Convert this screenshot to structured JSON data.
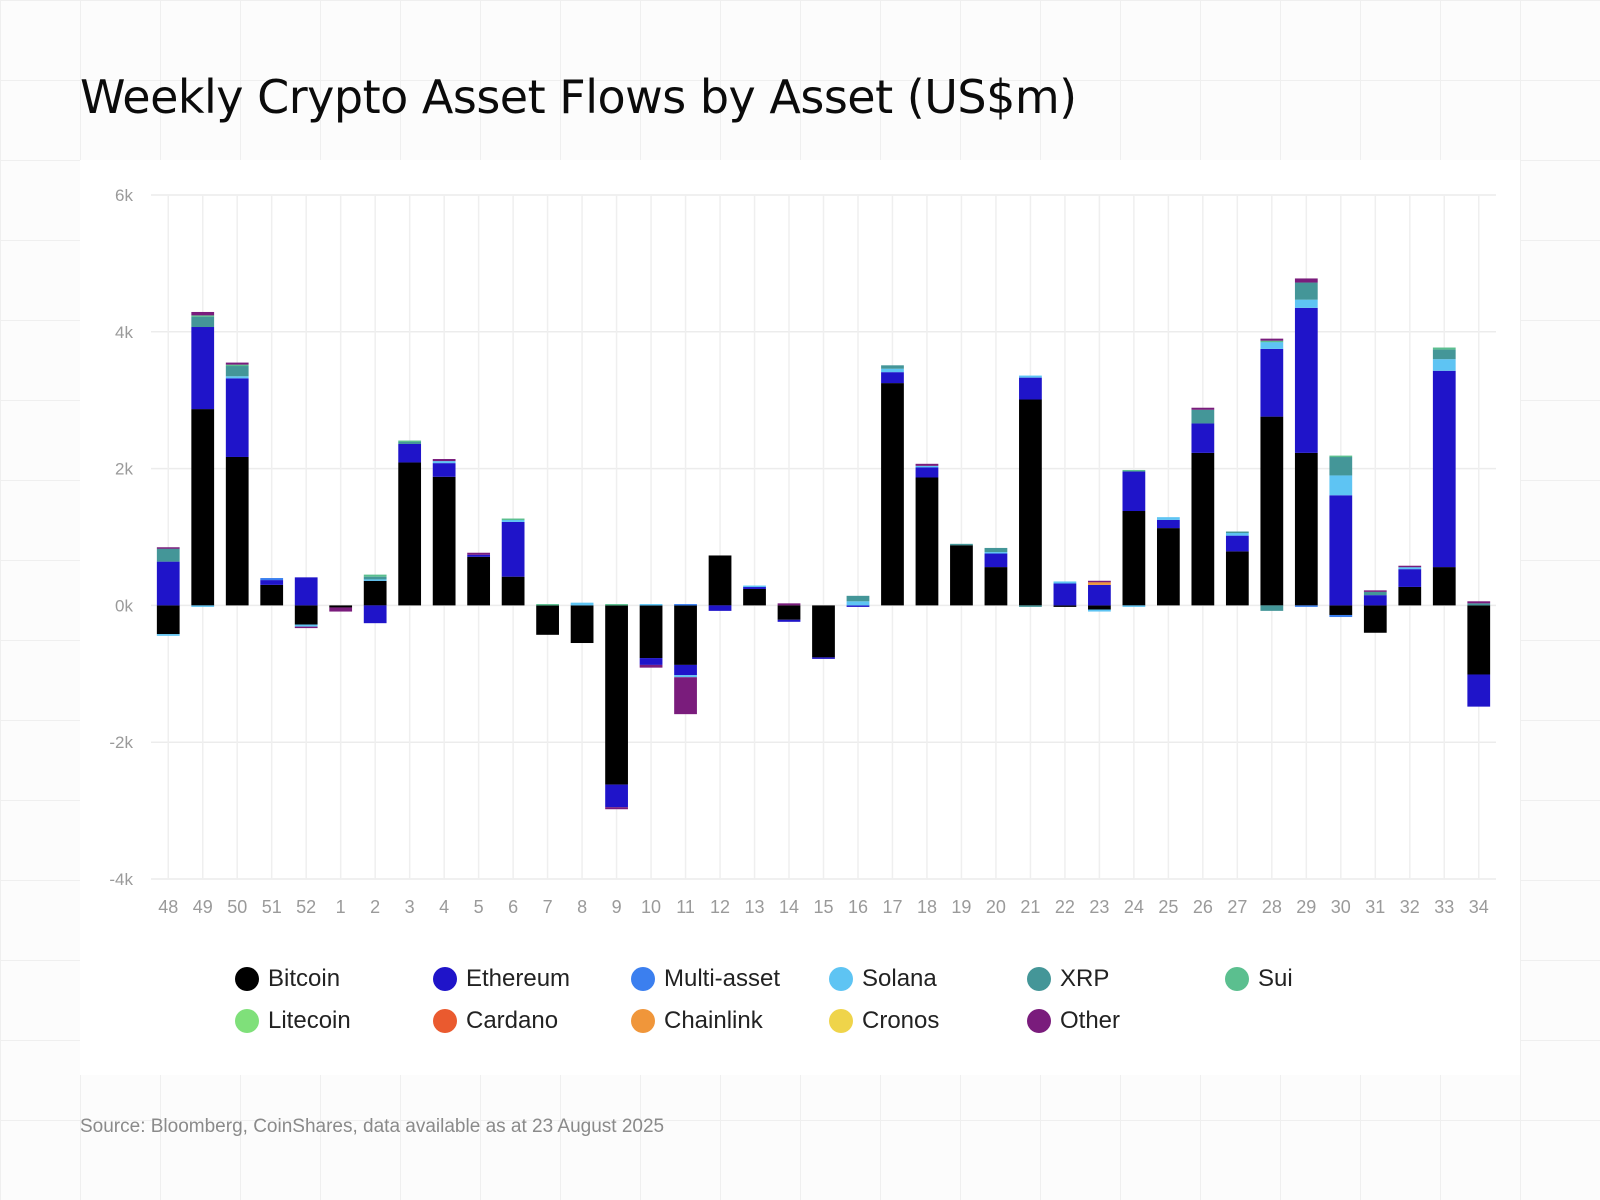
{
  "title": "Weekly Crypto Asset Flows by Asset (US$m)",
  "source": "Source: Bloomberg, CoinShares, data available as at 23 August 2025",
  "chart_data": {
    "type": "bar",
    "stacked": true,
    "title": "Weekly Crypto Asset Flows by Asset (US$m)",
    "xlabel": "",
    "ylabel": "",
    "ylim": [
      -4000,
      6000
    ],
    "yticks": [
      -4000,
      -2000,
      0,
      2000,
      4000,
      6000
    ],
    "ytick_labels": [
      "-4k",
      "-2k",
      "0k",
      "2k",
      "4k",
      "6k"
    ],
    "grid": true,
    "legend_position": "bottom",
    "categories": [
      "48",
      "49",
      "50",
      "51",
      "52",
      "1",
      "2",
      "3",
      "4",
      "5",
      "6",
      "7",
      "8",
      "9",
      "10",
      "11",
      "12",
      "13",
      "14",
      "15",
      "16",
      "17",
      "18",
      "19",
      "20",
      "21",
      "22",
      "23",
      "24",
      "25",
      "26",
      "27",
      "28",
      "29",
      "30",
      "31",
      "32",
      "33",
      "34"
    ],
    "series": [
      {
        "name": "Bitcoin",
        "color": "#000000",
        "values": [
          -420,
          2870,
          2170,
          300,
          -280,
          -30,
          360,
          2090,
          1880,
          710,
          420,
          -430,
          -550,
          -2620,
          -770,
          -870,
          730,
          240,
          -210,
          -760,
          0,
          3250,
          1870,
          880,
          560,
          3010,
          -20,
          -60,
          1380,
          1130,
          2230,
          790,
          2760,
          2230,
          -140,
          -400,
          270,
          560,
          -1010
        ]
      },
      {
        "name": "Ethereum",
        "color": "#1f14c9",
        "values": [
          640,
          1200,
          1150,
          70,
          410,
          0,
          -260,
          270,
          200,
          30,
          800,
          0,
          0,
          -330,
          -100,
          -150,
          -80,
          30,
          -30,
          -20,
          -20,
          160,
          150,
          0,
          200,
          320,
          320,
          300,
          580,
          120,
          430,
          230,
          990,
          2120,
          1610,
          150,
          260,
          2870,
          -470
        ]
      },
      {
        "name": "Multi-asset",
        "color": "#3b7fef",
        "values": [
          0,
          0,
          0,
          30,
          0,
          0,
          0,
          0,
          0,
          0,
          0,
          0,
          0,
          0,
          0,
          20,
          0,
          0,
          0,
          0,
          0,
          0,
          0,
          0,
          0,
          0,
          0,
          0,
          0,
          0,
          0,
          0,
          0,
          -20,
          -30,
          0,
          0,
          0,
          0
        ]
      },
      {
        "name": "Solana",
        "color": "#5ec4f3",
        "values": [
          -25,
          -20,
          30,
          0,
          -30,
          0,
          20,
          0,
          30,
          0,
          30,
          0,
          40,
          0,
          20,
          -30,
          0,
          20,
          0,
          0,
          60,
          50,
          20,
          0,
          20,
          30,
          30,
          -30,
          -20,
          40,
          0,
          40,
          100,
          120,
          290,
          0,
          30,
          170,
          0
        ]
      },
      {
        "name": "XRP",
        "color": "#449698",
        "values": [
          190,
          150,
          150,
          0,
          0,
          0,
          40,
          30,
          0,
          0,
          0,
          0,
          0,
          0,
          0,
          0,
          0,
          0,
          0,
          0,
          80,
          50,
          0,
          20,
          60,
          -20,
          0,
          0,
          0,
          0,
          200,
          20,
          -80,
          250,
          270,
          50,
          0,
          140,
          30
        ]
      },
      {
        "name": "Sui",
        "color": "#5bbf8f",
        "values": [
          0,
          20,
          20,
          0,
          0,
          0,
          30,
          20,
          0,
          0,
          20,
          20,
          0,
          20,
          0,
          0,
          0,
          0,
          0,
          0,
          0,
          0,
          0,
          0,
          0,
          0,
          0,
          0,
          20,
          0,
          0,
          0,
          20,
          0,
          20,
          0,
          0,
          30,
          0
        ]
      },
      {
        "name": "Litecoin",
        "color": "#7fe07a",
        "values": [
          0,
          0,
          0,
          0,
          0,
          0,
          0,
          0,
          0,
          0,
          0,
          0,
          0,
          0,
          0,
          0,
          0,
          0,
          0,
          0,
          0,
          0,
          0,
          0,
          0,
          0,
          0,
          0,
          0,
          0,
          0,
          0,
          0,
          0,
          0,
          0,
          0,
          0,
          0
        ]
      },
      {
        "name": "Cardano",
        "color": "#ea5a2f",
        "values": [
          0,
          0,
          0,
          0,
          0,
          0,
          0,
          0,
          0,
          0,
          0,
          0,
          0,
          0,
          0,
          0,
          0,
          0,
          0,
          0,
          0,
          0,
          0,
          0,
          0,
          0,
          0,
          0,
          0,
          0,
          0,
          0,
          0,
          0,
          0,
          0,
          0,
          0,
          0
        ]
      },
      {
        "name": "Chainlink",
        "color": "#f0963a",
        "values": [
          0,
          0,
          0,
          0,
          0,
          0,
          0,
          0,
          0,
          0,
          0,
          0,
          0,
          0,
          0,
          0,
          0,
          0,
          0,
          0,
          0,
          0,
          0,
          0,
          0,
          0,
          0,
          40,
          0,
          0,
          0,
          0,
          0,
          0,
          0,
          0,
          0,
          0,
          0
        ]
      },
      {
        "name": "Cronos",
        "color": "#efd44a",
        "values": [
          0,
          0,
          0,
          0,
          0,
          0,
          0,
          0,
          0,
          0,
          0,
          0,
          0,
          0,
          0,
          0,
          0,
          0,
          0,
          0,
          0,
          0,
          0,
          0,
          0,
          0,
          0,
          0,
          0,
          0,
          0,
          0,
          0,
          0,
          0,
          0,
          0,
          0,
          0
        ]
      },
      {
        "name": "Other",
        "color": "#7a1c7c",
        "values": [
          20,
          50,
          30,
          0,
          -20,
          -60,
          0,
          0,
          30,
          30,
          0,
          0,
          0,
          -30,
          -40,
          -540,
          0,
          0,
          30,
          0,
          0,
          0,
          30,
          0,
          0,
          0,
          0,
          20,
          0,
          0,
          30,
          0,
          30,
          60,
          0,
          20,
          20,
          0,
          30
        ]
      }
    ]
  }
}
